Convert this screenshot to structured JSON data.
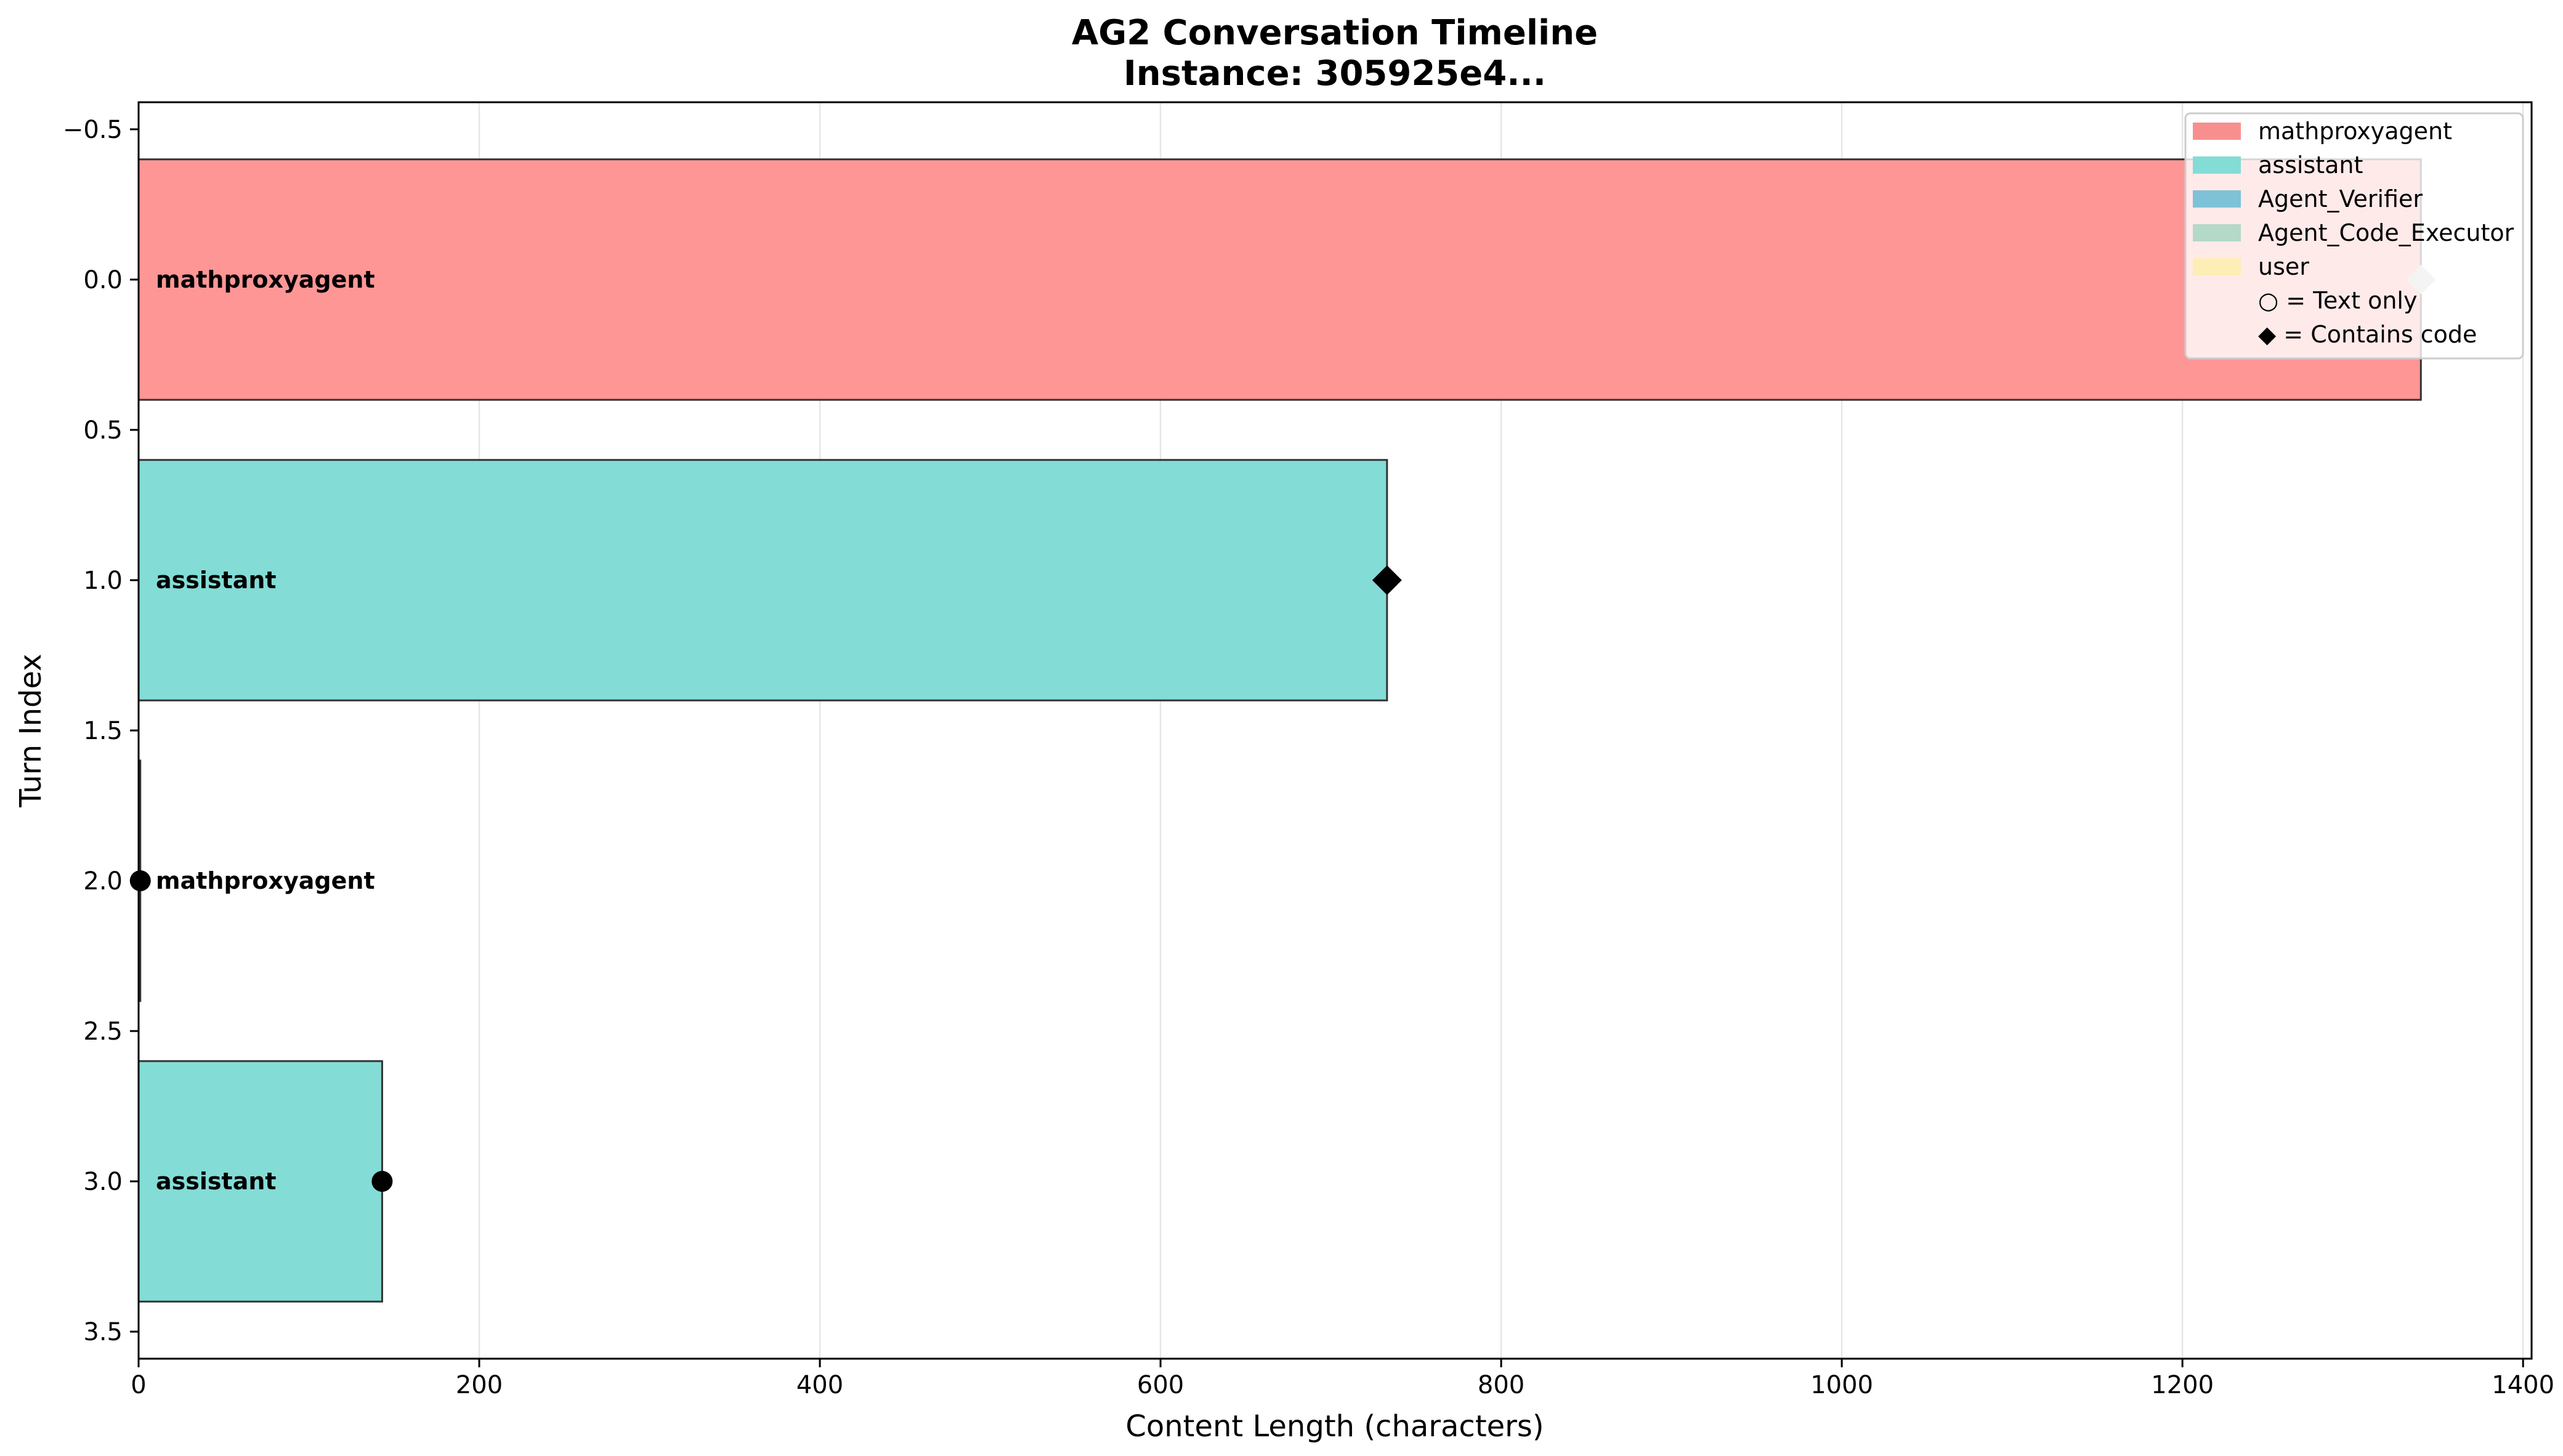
{
  "chart_data": {
    "type": "bar",
    "orientation": "horizontal",
    "title": "AG2 Conversation Timeline",
    "subtitle": "Instance: 305925e4...",
    "xlabel": "Content Length (characters)",
    "ylabel": "Turn Index",
    "xlim": [
      0,
      1405
    ],
    "ylim": [
      3.59,
      -0.59
    ],
    "y_inverted": true,
    "x_ticks": [
      0,
      200,
      400,
      600,
      800,
      1000,
      1200,
      1400
    ],
    "y_ticks": [
      -0.5,
      0.0,
      0.5,
      1.0,
      1.5,
      2.0,
      2.5,
      3.0,
      3.5
    ],
    "grid": "x-axis vertical lines",
    "bar_height": 0.8,
    "turns": [
      {
        "index": 0,
        "agent": "mathproxyagent",
        "length": 1340,
        "marker": "diamond",
        "marker_color": "#c8c8c8"
      },
      {
        "index": 1,
        "agent": "assistant",
        "length": 733,
        "marker": "diamond",
        "marker_color": "#000000"
      },
      {
        "index": 2,
        "agent": "mathproxyagent",
        "length": 1,
        "marker": "circle",
        "marker_color": "#000000"
      },
      {
        "index": 3,
        "agent": "assistant",
        "length": 143,
        "marker": "circle",
        "marker_color": "#000000"
      }
    ],
    "agent_colors": {
      "mathproxyagent": "#ff9696",
      "assistant": "#84dcd6",
      "Agent_Verifier": "#7ec7dc",
      "Agent_Code_Executor": "#b4d9c8",
      "user": "#fff0b4"
    },
    "legend": {
      "placement": "top-right",
      "entries": [
        {
          "label": "mathproxyagent",
          "swatch": "#f88f8f"
        },
        {
          "label": "assistant",
          "swatch": "#84dcd6"
        },
        {
          "label": "Agent_Verifier",
          "swatch": "#7ec2d8"
        },
        {
          "label": "Agent_Code_Executor",
          "swatch": "#b4d9c8"
        },
        {
          "label": "user",
          "swatch": "#fdeeb6"
        },
        {
          "label": "○ = Text only",
          "swatch": null
        },
        {
          "label": "◆ = Contains code",
          "swatch": null
        }
      ]
    }
  }
}
